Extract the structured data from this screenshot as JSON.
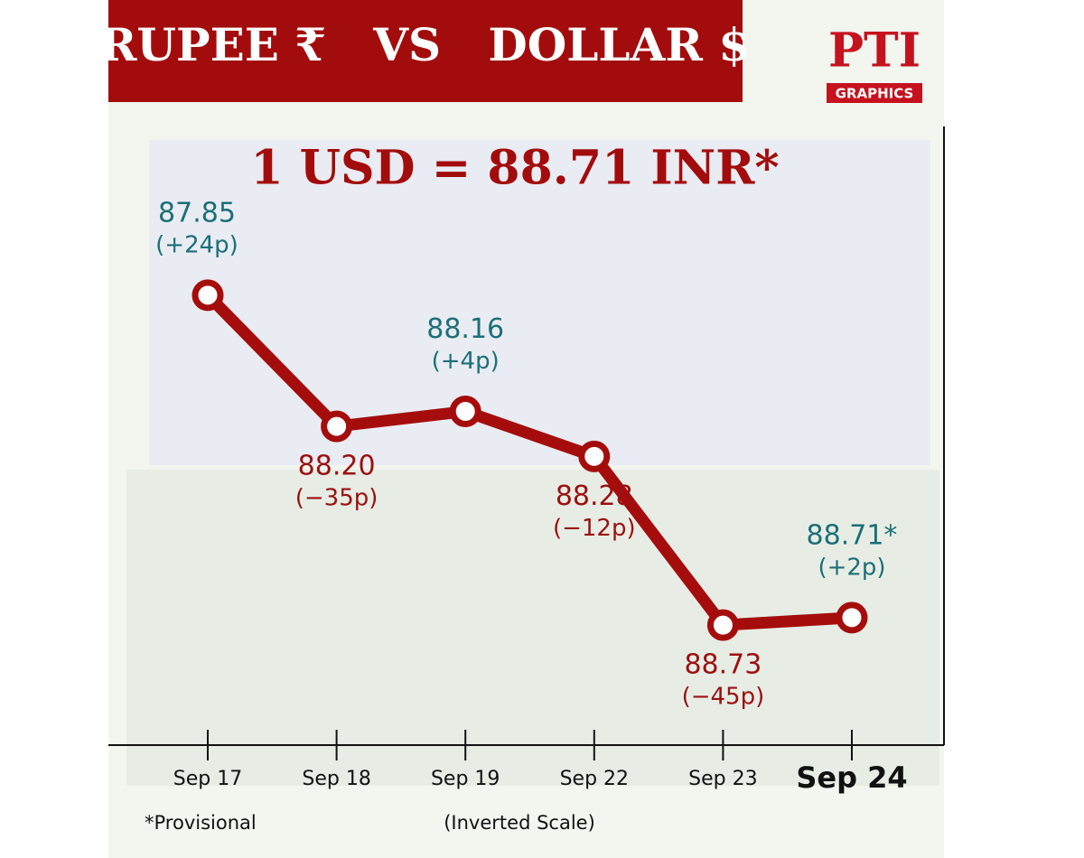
{
  "chart_data": {
    "type": "line",
    "title": "RUPEE ₹   VS   DOLLAR $",
    "headline": "1 USD = 88.71 INR*",
    "logo": "PTI",
    "logo_caption": "GRAPHICS",
    "categories": [
      "Sep 17",
      "Sep 18",
      "Sep 19",
      "Sep 22",
      "Sep 23",
      "Sep 24"
    ],
    "values": [
      87.85,
      88.2,
      88.16,
      88.28,
      88.73,
      88.71
    ],
    "value_labels": [
      "87.85",
      "88.20",
      "88.16",
      "88.28",
      "88.73",
      "88.71*"
    ],
    "change_labels": [
      "(+24p)",
      "(−35p)",
      "(+4p)",
      "(−12p)",
      "(−45p)",
      "(+2p)"
    ],
    "color": "#a50d0d",
    "gain_color": "#1c6f78",
    "loss_color": "#9c1010",
    "ylim": [
      87.4,
      89.05
    ],
    "y_inverted": true,
    "footnote": "*Provisional",
    "scale_note": "(Inverted Scale)"
  }
}
